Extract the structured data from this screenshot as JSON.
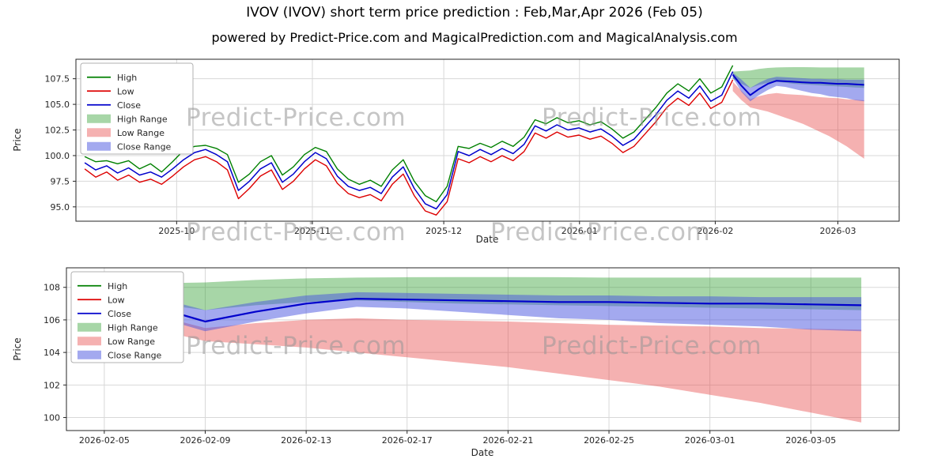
{
  "title": "IVOV (IVOV) short term price prediction : Feb,Mar,Apr 2026 (Feb 05)",
  "subtitle": "powered by Predict-Price.com and MagicalPrediction.com and MagicalAnalysis.com",
  "watermark_text": "Predict-Price.com",
  "legend": [
    {
      "label": "High",
      "type": "line",
      "color": "#008000"
    },
    {
      "label": "Low",
      "type": "line",
      "color": "#dd0000"
    },
    {
      "label": "Close",
      "type": "line",
      "color": "#0000cc"
    },
    {
      "label": "High Range",
      "type": "patch",
      "color": "#2e9e2e",
      "opacity": 0.42
    },
    {
      "label": "Low Range",
      "type": "patch",
      "color": "#e84545",
      "opacity": 0.42
    },
    {
      "label": "Close Range",
      "type": "patch",
      "color": "#4753e0",
      "opacity": 0.5
    }
  ],
  "chart_data": {
    "series": {
      "historical": {
        "x_start": 2,
        "x_end": 150,
        "high": [
          99.9,
          99.4,
          99.5,
          99.2,
          99.5,
          98.7,
          99.2,
          98.4,
          99.4,
          100.5,
          100.9,
          101.0,
          100.7,
          100.1,
          97.4,
          98.2,
          99.4,
          100.0,
          98.1,
          98.9,
          100.1,
          100.8,
          100.4,
          98.7,
          97.7,
          97.2,
          97.6,
          97.0,
          98.6,
          99.6,
          97.5,
          96.1,
          95.5,
          97.0,
          100.9,
          100.7,
          101.2,
          100.8,
          101.4,
          100.9,
          101.8,
          103.5,
          103.1,
          103.7,
          103.2,
          103.4,
          103.0,
          103.3,
          102.6,
          101.7,
          102.3,
          103.5,
          104.7,
          106.1,
          107.0,
          106.3,
          107.5,
          106.1,
          106.7,
          108.8
        ],
        "low": [
          98.7,
          97.9,
          98.4,
          97.6,
          98.1,
          97.4,
          97.7,
          97.2,
          98.0,
          98.9,
          99.6,
          99.9,
          99.4,
          98.6,
          95.8,
          96.8,
          98.0,
          98.6,
          96.7,
          97.5,
          98.7,
          99.6,
          99.0,
          97.3,
          96.3,
          95.9,
          96.2,
          95.6,
          97.2,
          98.2,
          96.1,
          94.6,
          94.2,
          95.5,
          99.7,
          99.3,
          99.9,
          99.4,
          100.0,
          99.5,
          100.4,
          102.2,
          101.7,
          102.3,
          101.8,
          102.0,
          101.6,
          101.9,
          101.2,
          100.3,
          100.9,
          102.1,
          103.3,
          104.7,
          105.6,
          104.9,
          106.1,
          104.6,
          105.2,
          107.4
        ],
        "close": [
          99.3,
          98.6,
          99.0,
          98.3,
          98.8,
          98.1,
          98.4,
          97.9,
          98.7,
          99.6,
          100.3,
          100.6,
          100.1,
          99.4,
          96.6,
          97.5,
          98.7,
          99.3,
          97.4,
          98.2,
          99.4,
          100.3,
          99.7,
          98.0,
          97.0,
          96.6,
          96.9,
          96.3,
          97.9,
          98.9,
          96.8,
          95.3,
          94.8,
          96.2,
          100.4,
          100.0,
          100.6,
          100.1,
          100.7,
          100.2,
          101.1,
          102.9,
          102.4,
          103.0,
          102.5,
          102.7,
          102.3,
          102.6,
          101.9,
          101.0,
          101.6,
          102.8,
          104.0,
          105.4,
          106.3,
          105.6,
          106.8,
          105.3,
          105.9,
          108.2
        ]
      },
      "prediction": {
        "x_abs": [
          150,
          152,
          154,
          156,
          158,
          160,
          162,
          164,
          166,
          168,
          170,
          172,
          174,
          176,
          178,
          180
        ],
        "x_rel": [
          0,
          2,
          4,
          6,
          8,
          10,
          12,
          14,
          16,
          18,
          20,
          22,
          24,
          26,
          28,
          30
        ],
        "close": [
          107.9,
          106.8,
          105.9,
          106.5,
          107.0,
          107.3,
          107.25,
          107.2,
          107.15,
          107.1,
          107.1,
          107.05,
          107.0,
          107.0,
          106.95,
          106.9
        ],
        "close_upper": [
          108.1,
          107.4,
          106.6,
          107.1,
          107.5,
          107.7,
          107.65,
          107.6,
          107.55,
          107.5,
          107.5,
          107.45,
          107.45,
          107.4,
          107.4,
          107.4
        ],
        "close_lower": [
          107.6,
          106.2,
          105.3,
          105.9,
          106.4,
          106.8,
          106.7,
          106.5,
          106.3,
          106.1,
          106.0,
          105.8,
          105.7,
          105.6,
          105.4,
          105.3
        ],
        "high_upper": [
          108.2,
          108.25,
          108.3,
          108.45,
          108.55,
          108.6,
          108.62,
          108.63,
          108.63,
          108.62,
          108.6,
          108.6,
          108.6,
          108.6,
          108.6,
          108.6
        ],
        "high_lower": [
          107.5,
          107.0,
          106.6,
          106.9,
          107.1,
          107.2,
          107.1,
          107.0,
          106.95,
          106.9,
          106.85,
          106.8,
          106.75,
          106.7,
          106.65,
          106.6
        ],
        "low_upper": [
          107.2,
          106.3,
          105.5,
          105.8,
          106.0,
          106.1,
          106.0,
          105.95,
          105.9,
          105.8,
          105.7,
          105.65,
          105.6,
          105.5,
          105.45,
          105.4
        ],
        "low_lower": [
          106.3,
          105.4,
          104.7,
          104.5,
          104.3,
          104.0,
          103.7,
          103.4,
          103.1,
          102.7,
          102.3,
          101.9,
          101.4,
          100.9,
          100.3,
          99.7
        ]
      }
    },
    "charts": [
      {
        "type": "line",
        "xlabel": "Date",
        "ylabel": "Price",
        "x_range": [
          0,
          188
        ],
        "y_range": [
          93.6,
          109.4
        ],
        "x_ticks": [
          {
            "v": 23,
            "label": "2025-10"
          },
          {
            "v": 54,
            "label": "2025-11"
          },
          {
            "v": 84,
            "label": "2025-12"
          },
          {
            "v": 115,
            "label": "2026-01"
          },
          {
            "v": 146,
            "label": "2026-02"
          },
          {
            "v": 174,
            "label": "2026-03"
          }
        ],
        "y_ticks": [
          {
            "v": 95.0,
            "label": "95.0"
          },
          {
            "v": 97.5,
            "label": "97.5"
          },
          {
            "v": 100.0,
            "label": "100.0"
          },
          {
            "v": 102.5,
            "label": "102.5"
          },
          {
            "v": 105.0,
            "label": "105.0"
          },
          {
            "v": 107.5,
            "label": "107.5"
          }
        ],
        "layers": [
          {
            "kind": "band",
            "src": "prediction",
            "xkey": "x_abs",
            "upper": "high_upper",
            "lower": "high_lower",
            "color": "#2e9e2e",
            "opacity": 0.42,
            "name": "high-range-band"
          },
          {
            "kind": "band",
            "src": "prediction",
            "xkey": "x_abs",
            "upper": "low_upper",
            "lower": "low_lower",
            "color": "#e84545",
            "opacity": 0.42,
            "name": "low-range-band"
          },
          {
            "kind": "band",
            "src": "prediction",
            "xkey": "x_abs",
            "upper": "close_upper",
            "lower": "close_lower",
            "color": "#4753e0",
            "opacity": 0.5,
            "name": "close-range-band"
          },
          {
            "kind": "line",
            "src": "historical",
            "y": "high",
            "color": "#008000",
            "width": 1.4,
            "name": "high-line"
          },
          {
            "kind": "line",
            "src": "historical",
            "y": "low",
            "color": "#dd0000",
            "width": 1.4,
            "name": "low-line"
          },
          {
            "kind": "line",
            "src": "historical",
            "y": "close",
            "color": "#0000cc",
            "width": 1.5,
            "name": "close-line"
          },
          {
            "kind": "line",
            "src": "prediction",
            "xkey": "x_abs",
            "y": "close",
            "color": "#0000cc",
            "width": 2.0,
            "name": "close-prediction-line"
          }
        ]
      },
      {
        "type": "line",
        "xlabel": "Date",
        "ylabel": "Price",
        "x_range": [
          -1.5,
          31.5
        ],
        "y_range": [
          99.2,
          109.2
        ],
        "x_ticks": [
          {
            "v": 0,
            "label": "2026-02-05"
          },
          {
            "v": 4,
            "label": "2026-02-09"
          },
          {
            "v": 8,
            "label": "2026-02-13"
          },
          {
            "v": 12,
            "label": "2026-02-17"
          },
          {
            "v": 16,
            "label": "2026-02-21"
          },
          {
            "v": 20,
            "label": "2026-02-25"
          },
          {
            "v": 24,
            "label": "2026-03-01"
          },
          {
            "v": 28,
            "label": "2026-03-05"
          }
        ],
        "y_ticks": [
          {
            "v": 100,
            "label": "100"
          },
          {
            "v": 102,
            "label": "102"
          },
          {
            "v": 104,
            "label": "104"
          },
          {
            "v": 106,
            "label": "106"
          },
          {
            "v": 108,
            "label": "108"
          }
        ],
        "layers": [
          {
            "kind": "band",
            "src": "prediction",
            "xkey": "x_rel",
            "upper": "high_upper",
            "lower": "high_lower",
            "color": "#2e9e2e",
            "opacity": 0.42,
            "name": "high-range-band"
          },
          {
            "kind": "band",
            "src": "prediction",
            "xkey": "x_rel",
            "upper": "low_upper",
            "lower": "low_lower",
            "color": "#e84545",
            "opacity": 0.42,
            "name": "low-range-band"
          },
          {
            "kind": "band",
            "src": "prediction",
            "xkey": "x_rel",
            "upper": "close_upper",
            "lower": "close_lower",
            "color": "#4753e0",
            "opacity": 0.5,
            "name": "close-range-band"
          },
          {
            "kind": "line",
            "src": "prediction",
            "xkey": "x_rel",
            "y": "close",
            "color": "#0000cc",
            "width": 2.2,
            "name": "close-prediction-line"
          }
        ]
      }
    ]
  }
}
